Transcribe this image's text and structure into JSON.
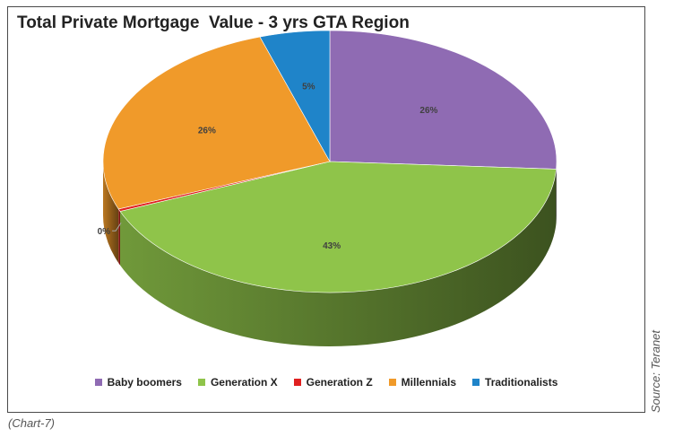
{
  "chart_data": {
    "type": "pie",
    "title": "Total Private Mortgage  Value - 3 yrs GTA Region",
    "style": "3d",
    "legend_position": "bottom",
    "slices": [
      {
        "name": "Baby boomers",
        "value": 26,
        "label": "26%",
        "color": "#8f6bb3"
      },
      {
        "name": "Generation X",
        "value": 43,
        "label": "43%",
        "color": "#8fc44a"
      },
      {
        "name": "Generation Z",
        "value": 0.3,
        "label": "0%",
        "color": "#e02020"
      },
      {
        "name": "Millennials",
        "value": 26,
        "label": "26%",
        "color": "#f09a2a"
      },
      {
        "name": "Traditionalists",
        "value": 5,
        "label": "5%",
        "color": "#1f84c9"
      }
    ]
  },
  "source": "Source: Teranet",
  "caption": "(Chart-7)"
}
